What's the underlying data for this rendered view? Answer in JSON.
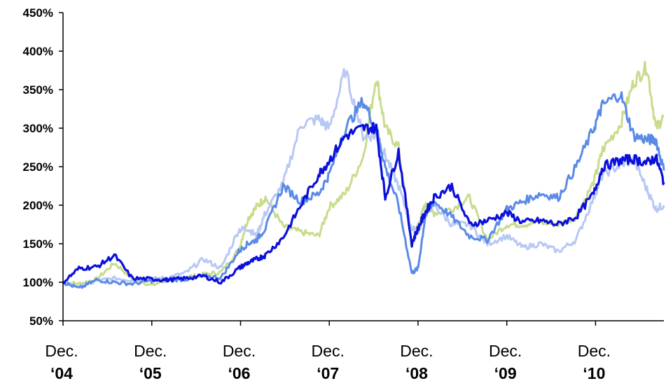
{
  "chart_data": {
    "type": "line",
    "title": "",
    "xlabel": "",
    "ylabel": "",
    "ylim": [
      50,
      450
    ],
    "yticks": [
      "450%",
      "400%",
      "350%",
      "300%",
      "250%",
      "200%",
      "150%",
      "100%",
      "50%"
    ],
    "ytick_values": [
      450,
      400,
      350,
      300,
      250,
      200,
      150,
      100,
      50
    ],
    "xlim": [
      2004.92,
      2011.69
    ],
    "xtick_values": [
      2004.92,
      2005.92,
      2006.92,
      2007.92,
      2008.92,
      2009.92,
      2010.92
    ],
    "xticks": [
      {
        "top": "Dec.",
        "bottom": "‘04"
      },
      {
        "top": "Dec.",
        "bottom": "‘05"
      },
      {
        "top": "Dec.",
        "bottom": "‘06"
      },
      {
        "top": "Dec.",
        "bottom": "‘07"
      },
      {
        "top": "Dec.",
        "bottom": "‘08"
      },
      {
        "top": "Dec.",
        "bottom": "‘09"
      },
      {
        "top": "Dec.",
        "bottom": "‘10"
      }
    ],
    "grid": false,
    "legend": "none",
    "series": [
      {
        "color": "#c8dc8c",
        "x": [
          2004.92,
          2005.1,
          2005.3,
          2005.5,
          2005.7,
          2005.92,
          2006.1,
          2006.3,
          2006.5,
          2006.7,
          2006.9,
          2007.0,
          2007.1,
          2007.2,
          2007.4,
          2007.6,
          2007.8,
          2007.92,
          2008.1,
          2008.3,
          2008.45,
          2008.55,
          2008.7,
          2008.85,
          2008.92,
          2009.0,
          2009.1,
          2009.3,
          2009.5,
          2009.7,
          2009.92,
          2010.1,
          2010.3,
          2010.5,
          2010.7,
          2010.9,
          2011.0,
          2011.2,
          2011.35,
          2011.5,
          2011.6,
          2011.69
        ],
        "y": [
          100,
          98,
          104,
          125,
          105,
          96,
          103,
          106,
          110,
          113,
          142,
          182,
          198,
          210,
          172,
          165,
          160,
          198,
          215,
          262,
          368,
          300,
          275,
          150,
          175,
          200,
          190,
          195,
          210,
          155,
          175,
          175,
          178,
          175,
          185,
          230,
          272,
          305,
          360,
          380,
          300,
          315
        ]
      },
      {
        "color": "#b8c8f4",
        "x": [
          2004.92,
          2005.1,
          2005.3,
          2005.5,
          2005.7,
          2005.92,
          2006.1,
          2006.3,
          2006.5,
          2006.7,
          2006.9,
          2007.0,
          2007.1,
          2007.2,
          2007.4,
          2007.6,
          2007.8,
          2007.92,
          2008.1,
          2008.3,
          2008.45,
          2008.55,
          2008.7,
          2008.85,
          2008.92,
          2009.0,
          2009.1,
          2009.3,
          2009.5,
          2009.7,
          2009.92,
          2010.1,
          2010.3,
          2010.5,
          2010.7,
          2010.9,
          2011.0,
          2011.2,
          2011.35,
          2011.5,
          2011.6,
          2011.69
        ],
        "y": [
          100,
          94,
          102,
          105,
          103,
          104,
          106,
          112,
          130,
          118,
          168,
          170,
          160,
          190,
          228,
          305,
          312,
          300,
          375,
          290,
          290,
          265,
          225,
          170,
          165,
          190,
          200,
          175,
          175,
          150,
          160,
          145,
          150,
          140,
          155,
          210,
          240,
          252,
          260,
          220,
          195,
          200
        ]
      },
      {
        "color": "#5a8ae8",
        "x": [
          2004.92,
          2005.1,
          2005.3,
          2005.5,
          2005.7,
          2005.92,
          2006.1,
          2006.3,
          2006.5,
          2006.7,
          2006.9,
          2007.0,
          2007.1,
          2007.2,
          2007.4,
          2007.6,
          2007.8,
          2007.92,
          2008.1,
          2008.3,
          2008.45,
          2008.55,
          2008.7,
          2008.85,
          2008.92,
          2009.0,
          2009.1,
          2009.3,
          2009.5,
          2009.7,
          2009.92,
          2010.1,
          2010.3,
          2010.5,
          2010.7,
          2010.9,
          2011.0,
          2011.2,
          2011.35,
          2011.5,
          2011.6,
          2011.69
        ],
        "y": [
          100,
          92,
          103,
          100,
          98,
          102,
          103,
          104,
          108,
          106,
          140,
          150,
          155,
          170,
          225,
          205,
          215,
          240,
          300,
          335,
          300,
          250,
          200,
          112,
          118,
          185,
          205,
          185,
          160,
          155,
          195,
          205,
          215,
          210,
          250,
          300,
          330,
          345,
          290,
          285,
          285,
          245
        ]
      },
      {
        "color": "#0c10dc",
        "x": [
          2004.92,
          2005.1,
          2005.3,
          2005.5,
          2005.7,
          2005.92,
          2006.1,
          2006.3,
          2006.5,
          2006.7,
          2006.9,
          2007.0,
          2007.1,
          2007.2,
          2007.4,
          2007.6,
          2007.8,
          2007.92,
          2008.1,
          2008.3,
          2008.45,
          2008.55,
          2008.7,
          2008.85,
          2008.92,
          2009.0,
          2009.1,
          2009.3,
          2009.5,
          2009.7,
          2009.92,
          2010.1,
          2010.3,
          2010.5,
          2010.7,
          2010.9,
          2011.0,
          2011.2,
          2011.35,
          2011.5,
          2011.6,
          2011.69
        ],
        "y": [
          100,
          118,
          120,
          135,
          105,
          104,
          103,
          105,
          108,
          100,
          118,
          125,
          130,
          135,
          158,
          200,
          240,
          258,
          290,
          300,
          300,
          210,
          270,
          150,
          170,
          190,
          210,
          225,
          175,
          180,
          190,
          178,
          180,
          175,
          185,
          215,
          250,
          258,
          260,
          255,
          262,
          230
        ]
      }
    ]
  }
}
